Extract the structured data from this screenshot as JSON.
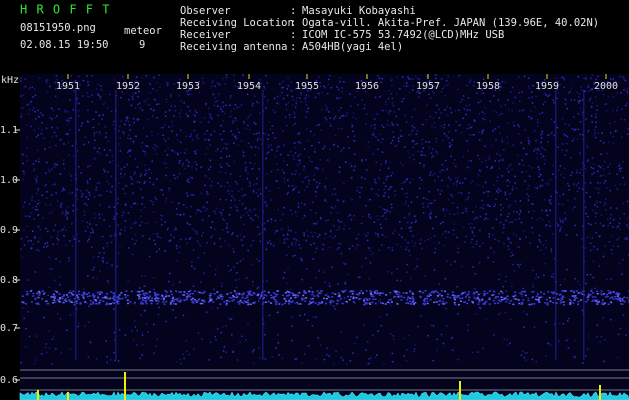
{
  "header": {
    "app_title": "H R O F F T",
    "file_name": "08151950.png",
    "timestamp": "02.08.15 19:50",
    "meteor_label": "meteor",
    "meteor_count": "9",
    "info": [
      {
        "label": "Observer",
        "value": "Masayuki Kobayashi"
      },
      {
        "label": "Receiving Location",
        "value": "Ogata-vill. Akita-Pref. JAPAN (139.96E, 40.02N)"
      },
      {
        "label": "Receiver",
        "value": "ICOM IC-575 53.7492(@LCD)MHz USB"
      },
      {
        "label": "Receiving antenna",
        "value": "A504HB(yagi 4el)"
      }
    ]
  },
  "spectrogram": {
    "unit": "kHz",
    "frequency_labels": [
      "1.1",
      "1.0",
      "0.9",
      "0.8",
      "0.7",
      "0.6"
    ],
    "time_labels": [
      "1951",
      "1952",
      "1953",
      "1954",
      "1955",
      "1956",
      "1957",
      "1958",
      "1959",
      "2000"
    ]
  }
}
